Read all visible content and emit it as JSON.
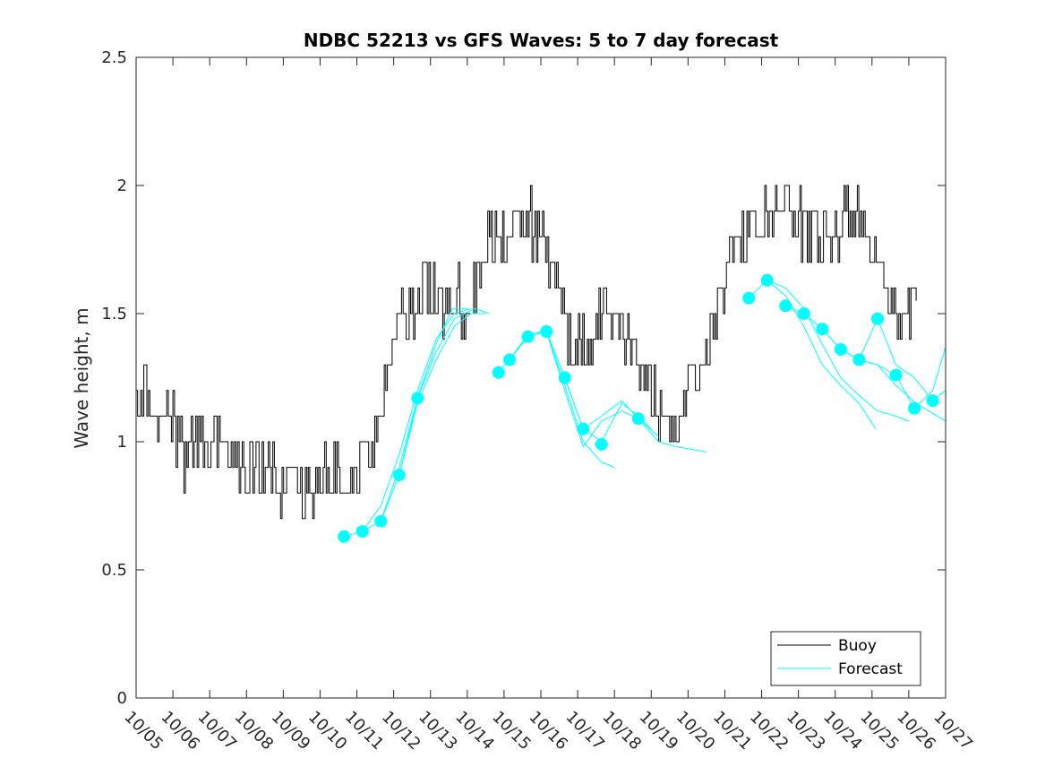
{
  "chart_data": {
    "type": "line",
    "title": "NDBC 52213 vs GFS Waves: 5 to 7 day forecast",
    "xlabel": "",
    "ylabel": "Wave height, m",
    "xlim": [
      5,
      27
    ],
    "ylim": [
      0,
      2.5
    ],
    "yticks": [
      0,
      0.5,
      1,
      1.5,
      2,
      2.5
    ],
    "ytick_labels": [
      "0",
      "0.5",
      "1",
      "1.5",
      "2",
      "2.5"
    ],
    "xticks": [
      5,
      6,
      7,
      8,
      9,
      10,
      11,
      12,
      13,
      14,
      15,
      16,
      17,
      18,
      19,
      20,
      21,
      22,
      23,
      24,
      25,
      26,
      27
    ],
    "xtick_labels": [
      "10/05",
      "10/06",
      "10/07",
      "10/08",
      "10/09",
      "10/10",
      "10/11",
      "10/12",
      "10/13",
      "10/14",
      "10/15",
      "10/16",
      "10/17",
      "10/18",
      "10/19",
      "10/20",
      "10/21",
      "10/22",
      "10/23",
      "10/24",
      "10/25",
      "10/26",
      "10/27"
    ],
    "legend": {
      "position": "bottom-right",
      "entries": [
        "Buoy",
        "Forecast"
      ]
    },
    "colors": {
      "buoy": "#000000",
      "forecast": "#00FFFF",
      "axis": "#262626"
    },
    "buoy_anchors": [
      [
        5.0,
        1.2
      ],
      [
        5.5,
        1.1
      ],
      [
        6.0,
        1.1
      ],
      [
        6.3,
        0.95
      ],
      [
        6.7,
        1.0
      ],
      [
        7.2,
        0.95
      ],
      [
        7.8,
        0.9
      ],
      [
        8.3,
        0.9
      ],
      [
        8.8,
        0.85
      ],
      [
        9.3,
        0.85
      ],
      [
        9.6,
        0.8
      ],
      [
        10.0,
        0.85
      ],
      [
        10.5,
        0.85
      ],
      [
        11.0,
        0.9
      ],
      [
        11.4,
        1.0
      ],
      [
        11.7,
        1.2
      ],
      [
        12.0,
        1.4
      ],
      [
        12.3,
        1.45
      ],
      [
        12.7,
        1.55
      ],
      [
        13.0,
        1.55
      ],
      [
        13.5,
        1.55
      ],
      [
        13.8,
        1.55
      ],
      [
        14.0,
        1.5
      ],
      [
        14.3,
        1.7
      ],
      [
        14.6,
        1.8
      ],
      [
        15.0,
        1.8
      ],
      [
        15.4,
        1.85
      ],
      [
        15.8,
        1.85
      ],
      [
        16.0,
        1.8
      ],
      [
        16.3,
        1.7
      ],
      [
        16.6,
        1.45
      ],
      [
        16.9,
        1.35
      ],
      [
        17.3,
        1.45
      ],
      [
        17.7,
        1.5
      ],
      [
        18.0,
        1.45
      ],
      [
        18.4,
        1.4
      ],
      [
        18.8,
        1.25
      ],
      [
        19.2,
        1.15
      ],
      [
        19.5,
        1.05
      ],
      [
        19.8,
        1.1
      ],
      [
        20.2,
        1.25
      ],
      [
        20.6,
        1.4
      ],
      [
        21.0,
        1.6
      ],
      [
        21.3,
        1.85
      ],
      [
        21.6,
        1.8
      ],
      [
        22.0,
        1.85
      ],
      [
        22.5,
        1.95
      ],
      [
        23.0,
        1.85
      ],
      [
        23.4,
        1.85
      ],
      [
        23.8,
        1.8
      ],
      [
        24.2,
        1.85
      ],
      [
        24.6,
        1.9
      ],
      [
        24.9,
        1.75
      ],
      [
        25.2,
        1.6
      ],
      [
        25.6,
        1.5
      ],
      [
        25.9,
        1.45
      ],
      [
        26.1,
        1.55
      ],
      [
        26.2,
        1.55
      ]
    ],
    "forecast_markers": [
      [
        10.65,
        0.63
      ],
      [
        11.15,
        0.65
      ],
      [
        11.65,
        0.69
      ],
      [
        12.15,
        0.87
      ],
      [
        12.65,
        1.17
      ],
      [
        14.85,
        1.27
      ],
      [
        15.15,
        1.32
      ],
      [
        15.65,
        1.41
      ],
      [
        16.15,
        1.43
      ],
      [
        16.65,
        1.25
      ],
      [
        17.15,
        1.05
      ],
      [
        17.65,
        0.99
      ],
      [
        18.65,
        1.09
      ],
      [
        21.65,
        1.56
      ],
      [
        22.15,
        1.63
      ],
      [
        22.65,
        1.53
      ],
      [
        23.15,
        1.5
      ],
      [
        23.65,
        1.44
      ],
      [
        24.15,
        1.36
      ],
      [
        24.65,
        1.32
      ],
      [
        25.15,
        1.48
      ],
      [
        25.65,
        1.26
      ],
      [
        26.15,
        1.13
      ],
      [
        26.65,
        1.16
      ]
    ],
    "forecast_lines": [
      [
        [
          10.65,
          0.63
        ],
        [
          11.15,
          0.65
        ],
        [
          11.65,
          0.75
        ],
        [
          12.15,
          0.95
        ],
        [
          12.65,
          1.2
        ],
        [
          13.15,
          1.4
        ],
        [
          13.65,
          1.5
        ],
        [
          14.1,
          1.52
        ]
      ],
      [
        [
          11.15,
          0.65
        ],
        [
          11.65,
          0.69
        ],
        [
          12.15,
          0.9
        ],
        [
          12.65,
          1.17
        ],
        [
          13.15,
          1.35
        ],
        [
          13.65,
          1.48
        ],
        [
          14.2,
          1.52
        ],
        [
          14.6,
          1.5
        ]
      ],
      [
        [
          11.65,
          0.69
        ],
        [
          12.15,
          0.87
        ],
        [
          12.65,
          1.15
        ],
        [
          13.15,
          1.32
        ],
        [
          13.65,
          1.45
        ],
        [
          14.1,
          1.5
        ],
        [
          14.5,
          1.5
        ]
      ],
      [
        [
          12.15,
          0.87
        ],
        [
          12.65,
          1.17
        ],
        [
          13.15,
          1.38
        ],
        [
          13.6,
          1.52
        ],
        [
          14.0,
          1.52
        ]
      ],
      [
        [
          14.85,
          1.27
        ],
        [
          15.15,
          1.32
        ],
        [
          15.65,
          1.41
        ],
        [
          16.15,
          1.43
        ],
        [
          16.65,
          1.22
        ],
        [
          17.15,
          1.0
        ],
        [
          17.65,
          0.92
        ],
        [
          18.0,
          0.9
        ]
      ],
      [
        [
          15.15,
          1.32
        ],
        [
          15.65,
          1.42
        ],
        [
          16.15,
          1.43
        ],
        [
          16.65,
          1.25
        ],
        [
          17.15,
          1.05
        ],
        [
          17.65,
          1.0
        ],
        [
          18.2,
          1.15
        ],
        [
          18.65,
          1.1
        ],
        [
          19.0,
          1.05
        ]
      ],
      [
        [
          15.65,
          1.41
        ],
        [
          16.15,
          1.43
        ],
        [
          16.65,
          1.2
        ],
        [
          17.15,
          0.98
        ],
        [
          17.65,
          1.08
        ],
        [
          18.2,
          1.12
        ],
        [
          18.65,
          1.09
        ],
        [
          19.2,
          1.02
        ]
      ],
      [
        [
          16.15,
          1.43
        ],
        [
          16.65,
          1.25
        ],
        [
          17.15,
          1.05
        ],
        [
          17.65,
          1.1
        ],
        [
          18.2,
          1.16
        ],
        [
          18.65,
          1.09
        ],
        [
          19.2,
          1.0
        ],
        [
          19.7,
          0.98
        ],
        [
          20.5,
          0.96
        ]
      ],
      [
        [
          21.65,
          1.56
        ],
        [
          22.15,
          1.63
        ],
        [
          22.65,
          1.57
        ],
        [
          23.15,
          1.45
        ],
        [
          23.65,
          1.3
        ],
        [
          24.15,
          1.22
        ],
        [
          24.65,
          1.15
        ],
        [
          25.1,
          1.05
        ]
      ],
      [
        [
          22.15,
          1.63
        ],
        [
          22.65,
          1.6
        ],
        [
          23.15,
          1.52
        ],
        [
          23.65,
          1.38
        ],
        [
          24.15,
          1.25
        ],
        [
          24.65,
          1.18
        ],
        [
          25.15,
          1.12
        ],
        [
          25.65,
          1.1
        ],
        [
          26.0,
          1.08
        ]
      ],
      [
        [
          22.65,
          1.53
        ],
        [
          23.15,
          1.5
        ],
        [
          23.65,
          1.44
        ],
        [
          24.15,
          1.36
        ],
        [
          24.65,
          1.32
        ],
        [
          25.15,
          1.3
        ],
        [
          25.65,
          1.22
        ],
        [
          26.2,
          1.15
        ],
        [
          27.0,
          1.08
        ]
      ],
      [
        [
          23.15,
          1.5
        ],
        [
          23.65,
          1.44
        ],
        [
          24.15,
          1.36
        ],
        [
          24.65,
          1.32
        ],
        [
          25.15,
          1.48
        ],
        [
          25.65,
          1.3
        ],
        [
          26.15,
          1.25
        ],
        [
          26.65,
          1.16
        ],
        [
          27.0,
          1.2
        ]
      ],
      [
        [
          24.15,
          1.36
        ],
        [
          24.65,
          1.32
        ],
        [
          25.15,
          1.3
        ],
        [
          25.65,
          1.26
        ],
        [
          26.15,
          1.13
        ],
        [
          26.65,
          1.2
        ],
        [
          27.0,
          1.37
        ]
      ]
    ]
  }
}
